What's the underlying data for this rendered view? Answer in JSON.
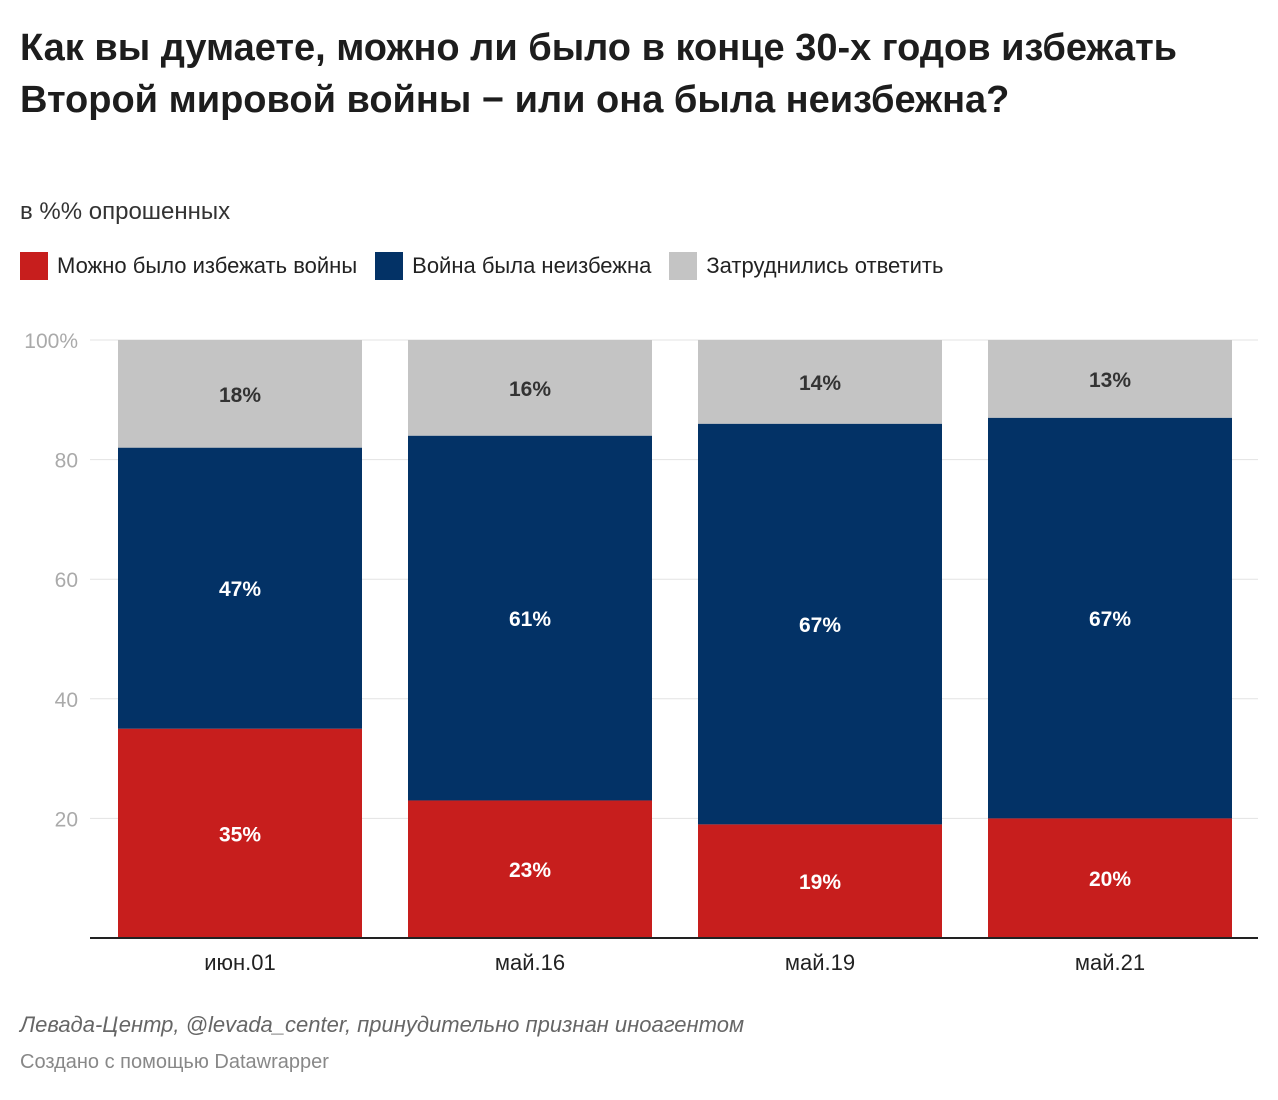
{
  "chart_data": {
    "type": "bar",
    "stacked": true,
    "title": "Как вы думаете, можно ли было в конце 30-х годов избежать Второй мировой войны − или она была неизбежна?",
    "subtitle": "в %% опрошенных",
    "categories": [
      "июн.01",
      "май.16",
      "май.19",
      "май.21"
    ],
    "series": [
      {
        "name": "Можно было избежать войны",
        "color": "#c71e1d",
        "values": [
          35,
          23,
          19,
          20
        ]
      },
      {
        "name": "Война была неизбежна",
        "color": "#033266",
        "values": [
          47,
          61,
          67,
          67
        ]
      },
      {
        "name": "Затруднились ответить",
        "color": "#c4c4c4",
        "values": [
          18,
          16,
          14,
          13
        ]
      }
    ],
    "yticks": [
      "",
      "20",
      "40",
      "60",
      "80",
      "100%"
    ],
    "ylim": [
      0,
      100
    ],
    "legend_position": "top-left",
    "grid": true
  },
  "source": "Левада-Центр, @levada_center, принудительно признан иноагентом",
  "credit": "Создано с помощью Datawrapper"
}
